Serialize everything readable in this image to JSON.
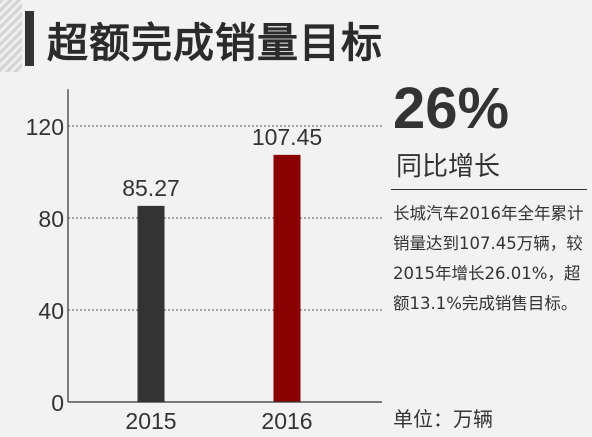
{
  "title": "超额完成销量目标",
  "stat": {
    "value": "26%",
    "caption": "同比增长"
  },
  "description": "长城汽车2016年全年累计销量达到107.45万辆，较2015年增长26.01%，超额13.1%完成销售目标。",
  "unit": "单位：万辆",
  "colors": {
    "bar_2015": "#333333",
    "bar_2016": "#8b0000",
    "text": "#333333"
  },
  "chart_data": {
    "type": "bar",
    "categories": [
      "2015",
      "2016"
    ],
    "values": [
      85.27,
      107.45
    ],
    "value_labels": [
      "85.27",
      "107.45"
    ],
    "yticks": [
      "0",
      "40",
      "80",
      "120"
    ],
    "ylim": [
      0,
      136
    ],
    "grid": true,
    "title": "",
    "xlabel": "",
    "ylabel": ""
  }
}
